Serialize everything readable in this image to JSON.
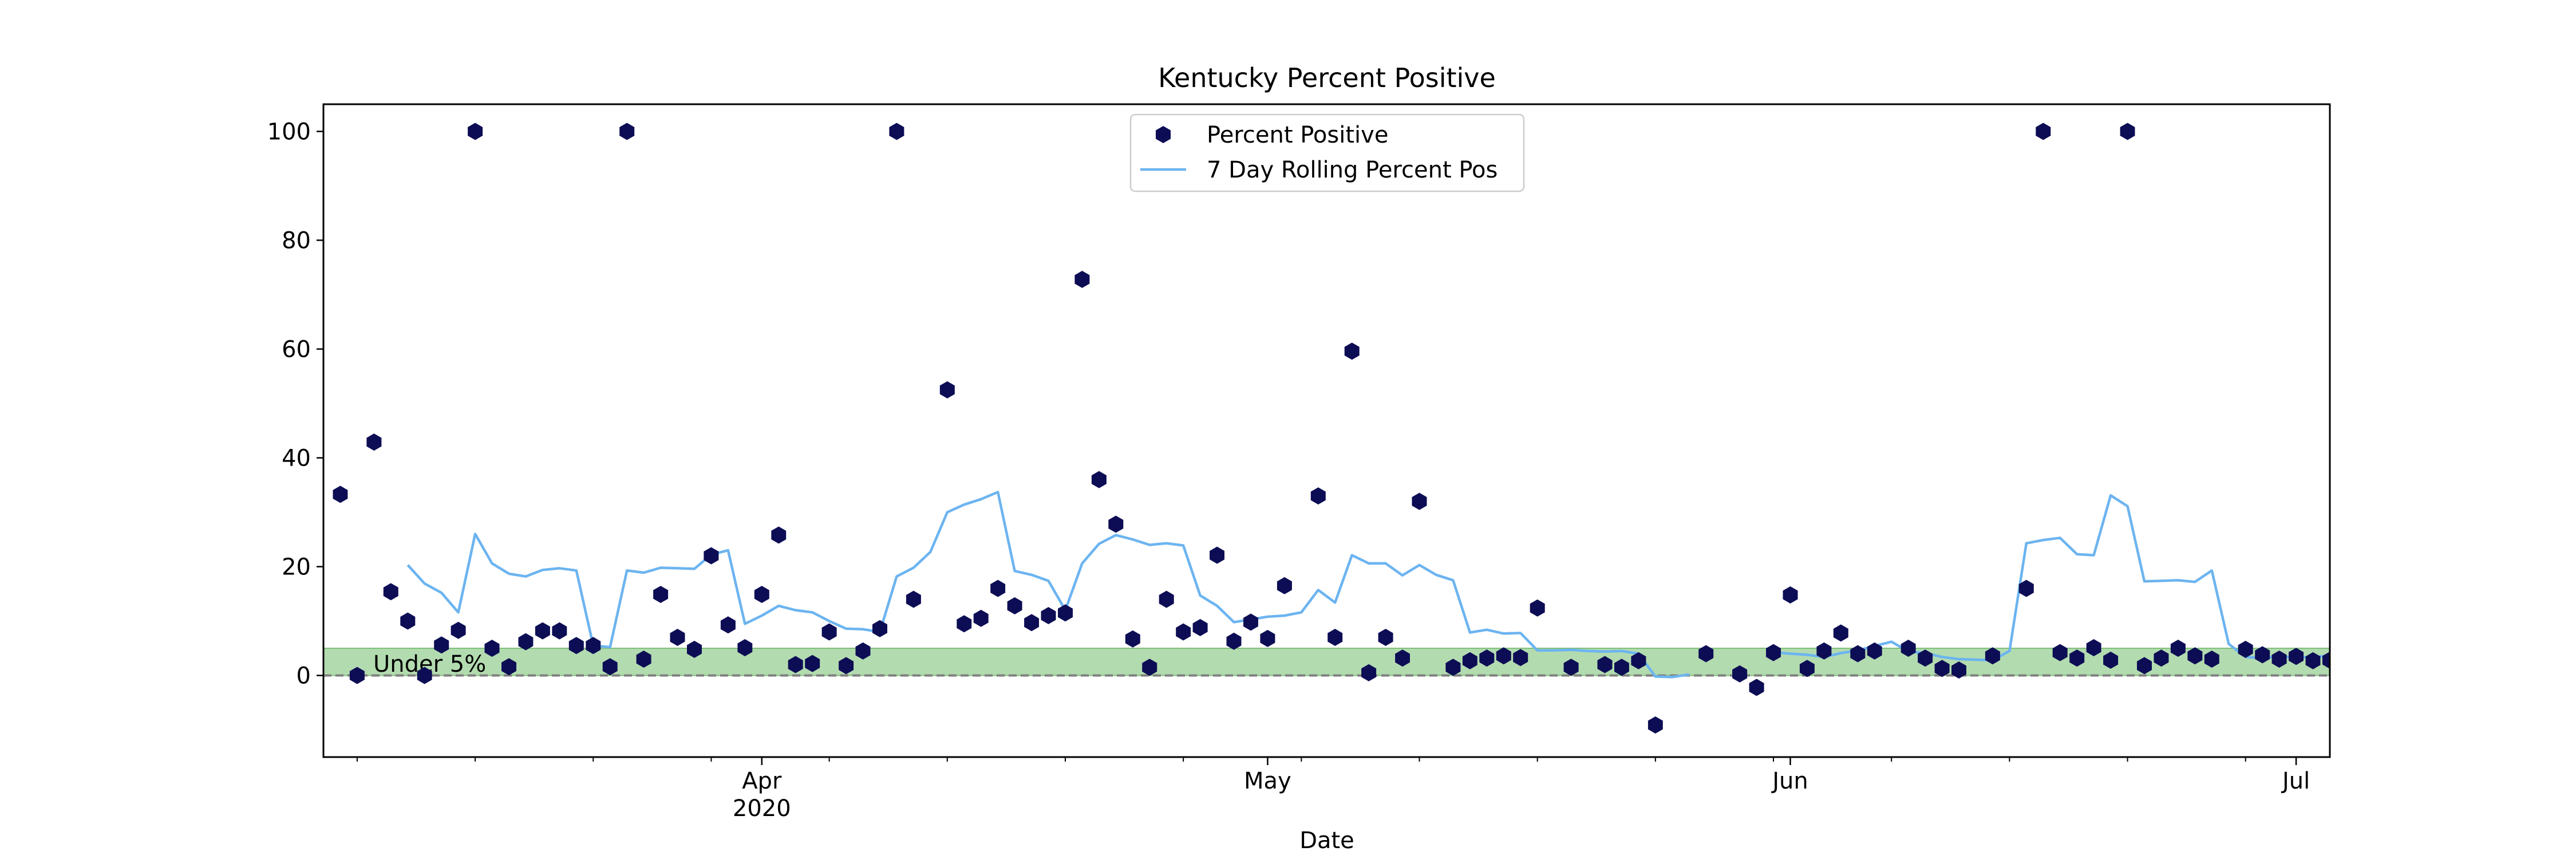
{
  "chart_data": {
    "type": "scatter",
    "title": "Kentucky Percent Positive",
    "xlabel": "Date",
    "ylabel": "",
    "x_ticks": [
      {
        "date": "2020-04-01",
        "label": "Apr",
        "sublabel": "2020"
      },
      {
        "date": "2020-05-01",
        "label": "May",
        "sublabel": ""
      },
      {
        "date": "2020-06-01",
        "label": "Jun",
        "sublabel": ""
      },
      {
        "date": "2020-07-01",
        "label": "Jul",
        "sublabel": ""
      }
    ],
    "xlim": [
      "2020-03-06",
      "2020-07-03"
    ],
    "ylim": [
      -15,
      105
    ],
    "y_ticks": [
      0,
      20,
      40,
      60,
      80,
      100
    ],
    "y_tick_labels": [
      "0",
      "20",
      "40",
      "60",
      "80",
      "100"
    ],
    "grid": false,
    "legend_position": "top-center",
    "band": {
      "label": "Under 5%",
      "from": 0,
      "to": 5,
      "color": "#b3dbb0",
      "edge_color": "#7fbf7a"
    },
    "zero_line": {
      "y": 0,
      "style": "dashed",
      "color": "#808080"
    },
    "series": [
      {
        "name": "Percent Positive",
        "kind": "points",
        "color": "#0d0d55",
        "points": [
          [
            "2020-03-07",
            33.3
          ],
          [
            "2020-03-08",
            0
          ],
          [
            "2020-03-09",
            42.9
          ],
          [
            "2020-03-10",
            15.4
          ],
          [
            "2020-03-11",
            10.0
          ],
          [
            "2020-03-12",
            0
          ],
          [
            "2020-03-13",
            5.6
          ],
          [
            "2020-03-14",
            8.3
          ],
          [
            "2020-03-15",
            100
          ],
          [
            "2020-03-16",
            5.0
          ],
          [
            "2020-03-17",
            1.6
          ],
          [
            "2020-03-18",
            6.2
          ],
          [
            "2020-03-19",
            8.2
          ],
          [
            "2020-03-20",
            8.2
          ],
          [
            "2020-03-21",
            5.5
          ],
          [
            "2020-03-22",
            5.5
          ],
          [
            "2020-03-23",
            1.6
          ],
          [
            "2020-03-24",
            100
          ],
          [
            "2020-03-25",
            3.0
          ],
          [
            "2020-03-26",
            14.9
          ],
          [
            "2020-03-27",
            7.0
          ],
          [
            "2020-03-28",
            4.8
          ],
          [
            "2020-03-29",
            22.0
          ],
          [
            "2020-03-30",
            9.3
          ],
          [
            "2020-03-31",
            5.1
          ],
          [
            "2020-04-01",
            14.9
          ],
          [
            "2020-04-02",
            25.8
          ],
          [
            "2020-04-03",
            2.0
          ],
          [
            "2020-04-04",
            2.2
          ],
          [
            "2020-04-05",
            8.0
          ],
          [
            "2020-04-06",
            1.8
          ],
          [
            "2020-04-07",
            4.5
          ],
          [
            "2020-04-08",
            8.6
          ],
          [
            "2020-04-09",
            100
          ],
          [
            "2020-04-10",
            14.0
          ],
          [
            "2020-04-12",
            52.5
          ],
          [
            "2020-04-13",
            9.5
          ],
          [
            "2020-04-14",
            10.5
          ],
          [
            "2020-04-15",
            16.0
          ],
          [
            "2020-04-16",
            12.8
          ],
          [
            "2020-04-17",
            9.7
          ],
          [
            "2020-04-18",
            11.0
          ],
          [
            "2020-04-19",
            11.5
          ],
          [
            "2020-04-20",
            72.8
          ],
          [
            "2020-04-21",
            36.0
          ],
          [
            "2020-04-22",
            27.8
          ],
          [
            "2020-04-23",
            6.7
          ],
          [
            "2020-04-24",
            1.5
          ],
          [
            "2020-04-25",
            14.0
          ],
          [
            "2020-04-26",
            8.0
          ],
          [
            "2020-04-27",
            8.8
          ],
          [
            "2020-04-28",
            22.1
          ],
          [
            "2020-04-29",
            6.3
          ],
          [
            "2020-04-30",
            9.8
          ],
          [
            "2020-05-01",
            6.8
          ],
          [
            "2020-05-02",
            16.5
          ],
          [
            "2020-05-04",
            33.0
          ],
          [
            "2020-05-05",
            7.0
          ],
          [
            "2020-05-06",
            59.6
          ],
          [
            "2020-05-07",
            0.5
          ],
          [
            "2020-05-08",
            7.0
          ],
          [
            "2020-05-09",
            3.2
          ],
          [
            "2020-05-10",
            32.0
          ],
          [
            "2020-05-12",
            1.5
          ],
          [
            "2020-05-13",
            2.7
          ],
          [
            "2020-05-14",
            3.2
          ],
          [
            "2020-05-15",
            3.6
          ],
          [
            "2020-05-16",
            3.3
          ],
          [
            "2020-05-17",
            12.4
          ],
          [
            "2020-05-19",
            1.5
          ],
          [
            "2020-05-21",
            2.0
          ],
          [
            "2020-05-22",
            1.5
          ],
          [
            "2020-05-23",
            2.7
          ],
          [
            "2020-05-24",
            -9.1
          ],
          [
            "2020-05-27",
            4.0
          ],
          [
            "2020-05-29",
            0.3
          ],
          [
            "2020-05-30",
            -2.2
          ],
          [
            "2020-05-31",
            4.2
          ],
          [
            "2020-06-01",
            14.8
          ],
          [
            "2020-06-02",
            1.3
          ],
          [
            "2020-06-03",
            4.5
          ],
          [
            "2020-06-04",
            7.8
          ],
          [
            "2020-06-05",
            4.0
          ],
          [
            "2020-06-06",
            4.5
          ],
          [
            "2020-06-08",
            5.0
          ],
          [
            "2020-06-09",
            3.2
          ],
          [
            "2020-06-10",
            1.3
          ],
          [
            "2020-06-11",
            1.0
          ],
          [
            "2020-06-13",
            3.6
          ],
          [
            "2020-06-15",
            16.0
          ],
          [
            "2020-06-16",
            100
          ],
          [
            "2020-06-17",
            4.2
          ],
          [
            "2020-06-18",
            3.2
          ],
          [
            "2020-06-19",
            5.1
          ],
          [
            "2020-06-20",
            2.8
          ],
          [
            "2020-06-21",
            100
          ],
          [
            "2020-06-22",
            1.8
          ],
          [
            "2020-06-23",
            3.2
          ],
          [
            "2020-06-24",
            5.0
          ],
          [
            "2020-06-25",
            3.6
          ],
          [
            "2020-06-26",
            3.0
          ],
          [
            "2020-06-28",
            4.8
          ],
          [
            "2020-06-29",
            3.8
          ],
          [
            "2020-06-30",
            3.0
          ],
          [
            "2020-07-01",
            3.5
          ],
          [
            "2020-07-02",
            2.7
          ],
          [
            "2020-07-03",
            2.8
          ]
        ]
      },
      {
        "name": "7 Day Rolling Percent Pos",
        "kind": "line",
        "color": "#6cb4f0",
        "points": [
          [
            "2020-03-11",
            20.3
          ],
          [
            "2020-03-12",
            16.9
          ],
          [
            "2020-03-13",
            15.2
          ],
          [
            "2020-03-14",
            11.6
          ],
          [
            "2020-03-15",
            26.0
          ],
          [
            "2020-03-16",
            20.6
          ],
          [
            "2020-03-17",
            18.7
          ],
          [
            "2020-03-18",
            18.2
          ],
          [
            "2020-03-19",
            19.4
          ],
          [
            "2020-03-20",
            19.7
          ],
          [
            "2020-03-21",
            19.3
          ],
          [
            "2020-03-22",
            5.5
          ],
          [
            "2020-03-23",
            5.2
          ],
          [
            "2020-03-24",
            19.3
          ],
          [
            "2020-03-25",
            18.9
          ],
          [
            "2020-03-26",
            19.8
          ],
          [
            "2020-03-27",
            19.7
          ],
          [
            "2020-03-28",
            19.6
          ],
          [
            "2020-03-29",
            22.2
          ],
          [
            "2020-03-30",
            23.0
          ],
          [
            "2020-03-31",
            9.5
          ],
          [
            "2020-04-01",
            11.0
          ],
          [
            "2020-04-02",
            12.8
          ],
          [
            "2020-04-03",
            12.0
          ],
          [
            "2020-04-04",
            11.6
          ],
          [
            "2020-04-05",
            10.0
          ],
          [
            "2020-04-06",
            8.6
          ],
          [
            "2020-04-07",
            8.5
          ],
          [
            "2020-04-08",
            8.0
          ],
          [
            "2020-04-09",
            18.2
          ],
          [
            "2020-04-10",
            19.8
          ],
          [
            "2020-04-11",
            22.7
          ],
          [
            "2020-04-12",
            30.0
          ],
          [
            "2020-04-13",
            31.4
          ],
          [
            "2020-04-14",
            32.4
          ],
          [
            "2020-04-15",
            33.7
          ],
          [
            "2020-04-16",
            19.2
          ],
          [
            "2020-04-17",
            18.5
          ],
          [
            "2020-04-18",
            17.4
          ],
          [
            "2020-04-19",
            12.0
          ],
          [
            "2020-04-20",
            20.6
          ],
          [
            "2020-04-21",
            24.2
          ],
          [
            "2020-04-22",
            25.8
          ],
          [
            "2020-04-23",
            25.0
          ],
          [
            "2020-04-24",
            24.0
          ],
          [
            "2020-04-25",
            24.3
          ],
          [
            "2020-04-26",
            23.9
          ],
          [
            "2020-04-27",
            14.7
          ],
          [
            "2020-04-28",
            12.8
          ],
          [
            "2020-04-29",
            9.8
          ],
          [
            "2020-04-30",
            10.3
          ],
          [
            "2020-05-01",
            10.8
          ],
          [
            "2020-05-02",
            11.0
          ],
          [
            "2020-05-03",
            11.6
          ],
          [
            "2020-05-04",
            15.7
          ],
          [
            "2020-05-05",
            13.4
          ],
          [
            "2020-05-06",
            22.1
          ],
          [
            "2020-05-07",
            20.6
          ],
          [
            "2020-05-08",
            20.6
          ],
          [
            "2020-05-09",
            18.4
          ],
          [
            "2020-05-10",
            20.3
          ],
          [
            "2020-05-11",
            18.5
          ],
          [
            "2020-05-12",
            17.5
          ],
          [
            "2020-05-13",
            7.9
          ],
          [
            "2020-05-14",
            8.4
          ],
          [
            "2020-05-15",
            7.7
          ],
          [
            "2020-05-16",
            7.8
          ],
          [
            "2020-05-17",
            4.6
          ],
          [
            "2020-05-18",
            4.6
          ],
          [
            "2020-05-19",
            4.7
          ],
          [
            "2020-05-20",
            4.5
          ],
          [
            "2020-05-21",
            4.4
          ],
          [
            "2020-05-22",
            4.5
          ],
          [
            "2020-05-23",
            4.0
          ],
          [
            "2020-05-24",
            -0.2
          ],
          [
            "2020-05-25",
            -0.3
          ],
          [
            "2020-05-26",
            0.2
          ],
          [
            "2020-05-31",
            4.3
          ],
          [
            "2020-06-01",
            4.0
          ],
          [
            "2020-06-02",
            3.8
          ],
          [
            "2020-06-03",
            3.4
          ],
          [
            "2020-06-04",
            4.1
          ],
          [
            "2020-06-05",
            4.6
          ],
          [
            "2020-06-06",
            5.4
          ],
          [
            "2020-06-07",
            6.2
          ],
          [
            "2020-06-08",
            4.4
          ],
          [
            "2020-06-09",
            4.1
          ],
          [
            "2020-06-10",
            3.4
          ],
          [
            "2020-06-11",
            3.0
          ],
          [
            "2020-06-12",
            2.9
          ],
          [
            "2020-06-13",
            2.8
          ],
          [
            "2020-06-14",
            4.5
          ],
          [
            "2020-06-15",
            24.3
          ],
          [
            "2020-06-16",
            24.9
          ],
          [
            "2020-06-17",
            25.3
          ],
          [
            "2020-06-18",
            22.3
          ],
          [
            "2020-06-19",
            22.1
          ],
          [
            "2020-06-20",
            33.1
          ],
          [
            "2020-06-21",
            31.1
          ],
          [
            "2020-06-22",
            17.3
          ],
          [
            "2020-06-23",
            17.4
          ],
          [
            "2020-06-24",
            17.5
          ],
          [
            "2020-06-25",
            17.2
          ],
          [
            "2020-06-26",
            19.3
          ],
          [
            "2020-06-27",
            5.8
          ],
          [
            "2020-06-28",
            3.4
          ],
          [
            "2020-06-29",
            3.2
          ],
          [
            "2020-06-30",
            3.5
          ],
          [
            "2020-07-01",
            3.3
          ],
          [
            "2020-07-02",
            3.4
          ],
          [
            "2020-07-03",
            3.6
          ]
        ]
      }
    ]
  }
}
